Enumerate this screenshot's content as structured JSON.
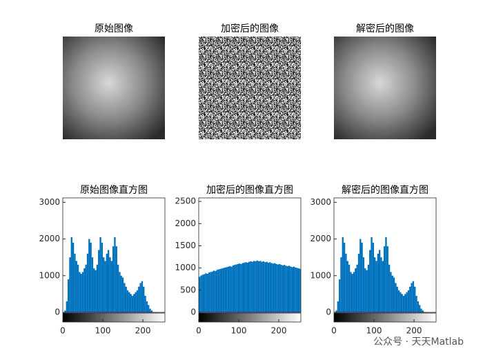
{
  "chart_data": [
    {
      "type": "image",
      "title": "原始图像"
    },
    {
      "type": "image",
      "title": "加密后的图像"
    },
    {
      "type": "image",
      "title": "解密后的图像"
    },
    {
      "type": "bar",
      "title": "原始图像直方图",
      "color": "#0072bd",
      "x": [
        0,
        4,
        8,
        12,
        16,
        20,
        24,
        28,
        32,
        36,
        40,
        44,
        48,
        52,
        56,
        60,
        64,
        68,
        72,
        76,
        80,
        84,
        88,
        92,
        96,
        100,
        104,
        108,
        112,
        116,
        120,
        124,
        128,
        132,
        136,
        140,
        144,
        148,
        152,
        156,
        160,
        164,
        168,
        172,
        176,
        180,
        184,
        188,
        192,
        196,
        200,
        204,
        208,
        212,
        216,
        220,
        224,
        228,
        232,
        236,
        240,
        244,
        248,
        252
      ],
      "values": [
        0,
        50,
        300,
        900,
        1500,
        2050,
        1900,
        1600,
        1400,
        1300,
        1100,
        1050,
        1100,
        1200,
        1300,
        1600,
        2000,
        1900,
        1500,
        1200,
        1150,
        1300,
        1700,
        2050,
        1900,
        1500,
        1400,
        1600,
        1700,
        1500,
        1400,
        1800,
        2050,
        1800,
        1300,
        1100,
        1000,
        950,
        800,
        700,
        600,
        550,
        500,
        450,
        500,
        550,
        600,
        700,
        800,
        850,
        700,
        450,
        300,
        200,
        100,
        50,
        10,
        0,
        0,
        0,
        0,
        0,
        0,
        0
      ],
      "xlim": [
        0,
        255
      ],
      "xticks": [
        0,
        100,
        200
      ],
      "ylim": [
        0,
        3120
      ],
      "yticks": [
        0,
        1000,
        2000,
        3000
      ]
    },
    {
      "type": "bar",
      "title": "加密后的图像直方图",
      "color": "#0072bd",
      "x": [
        0,
        4,
        8,
        12,
        16,
        20,
        24,
        28,
        32,
        36,
        40,
        44,
        48,
        52,
        56,
        60,
        64,
        68,
        72,
        76,
        80,
        84,
        88,
        92,
        96,
        100,
        104,
        108,
        112,
        116,
        120,
        124,
        128,
        132,
        136,
        140,
        144,
        148,
        152,
        156,
        160,
        164,
        168,
        172,
        176,
        180,
        184,
        188,
        192,
        196,
        200,
        204,
        208,
        212,
        216,
        220,
        224,
        228,
        232,
        236,
        240,
        244,
        248,
        252
      ],
      "values": [
        800,
        830,
        850,
        860,
        880,
        870,
        900,
        910,
        920,
        940,
        930,
        960,
        970,
        980,
        990,
        1000,
        1010,
        1020,
        1030,
        1040,
        1030,
        1060,
        1070,
        1080,
        1090,
        1100,
        1090,
        1110,
        1120,
        1130,
        1120,
        1140,
        1150,
        1140,
        1160,
        1150,
        1170,
        1150,
        1160,
        1140,
        1150,
        1130,
        1140,
        1120,
        1130,
        1110,
        1100,
        1110,
        1090,
        1080,
        1090,
        1070,
        1060,
        1070,
        1050,
        1040,
        1050,
        1030,
        1020,
        1030,
        1010,
        1000,
        990,
        980
      ],
      "xlim": [
        0,
        255
      ],
      "xticks": [
        0,
        100,
        200
      ],
      "ylim": [
        0,
        2580
      ],
      "yticks": [
        0,
        500,
        1000,
        1500,
        2000,
        2500
      ]
    },
    {
      "type": "bar",
      "title": "解密后的图像直方图",
      "color": "#0072bd",
      "x": [
        0,
        4,
        8,
        12,
        16,
        20,
        24,
        28,
        32,
        36,
        40,
        44,
        48,
        52,
        56,
        60,
        64,
        68,
        72,
        76,
        80,
        84,
        88,
        92,
        96,
        100,
        104,
        108,
        112,
        116,
        120,
        124,
        128,
        132,
        136,
        140,
        144,
        148,
        152,
        156,
        160,
        164,
        168,
        172,
        176,
        180,
        184,
        188,
        192,
        196,
        200,
        204,
        208,
        212,
        216,
        220,
        224,
        228,
        232,
        236,
        240,
        244,
        248,
        252
      ],
      "values": [
        0,
        50,
        300,
        900,
        1500,
        2050,
        1900,
        1600,
        1400,
        1300,
        1100,
        1050,
        1100,
        1200,
        1300,
        1600,
        2000,
        1900,
        1500,
        1200,
        1150,
        1300,
        1700,
        2050,
        1900,
        1500,
        1400,
        1600,
        1700,
        1500,
        1400,
        1800,
        2050,
        1800,
        1300,
        1100,
        1000,
        950,
        800,
        700,
        600,
        550,
        500,
        450,
        500,
        550,
        600,
        700,
        800,
        850,
        700,
        450,
        300,
        200,
        100,
        50,
        10,
        0,
        0,
        0,
        0,
        0,
        0,
        0
      ],
      "xlim": [
        0,
        255
      ],
      "xticks": [
        0,
        100,
        200
      ],
      "ylim": [
        0,
        3120
      ],
      "yticks": [
        0,
        1000,
        2000,
        3000
      ]
    }
  ],
  "watermark": "公众号 · 天天Matlab"
}
